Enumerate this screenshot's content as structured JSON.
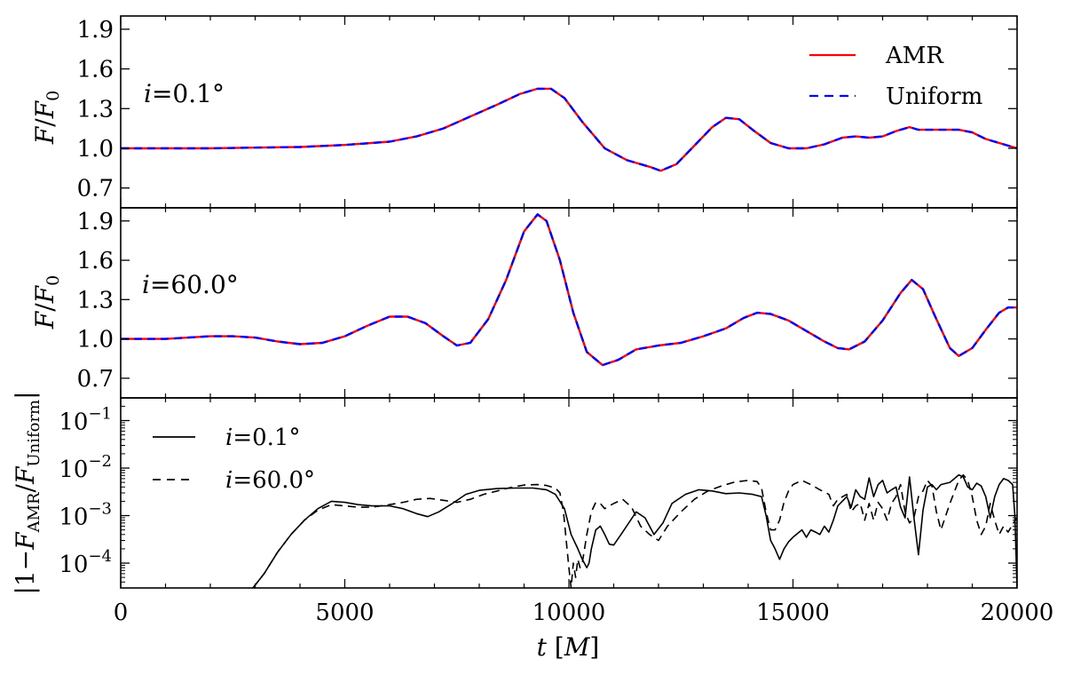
{
  "chart_data": [
    {
      "type": "line",
      "panel": "top",
      "annotation": "i = 0.1°",
      "ylabel": "F/F0",
      "xlim": [
        0,
        20000
      ],
      "ylim": [
        0.55,
        2.0
      ],
      "yticks": [
        0.7,
        1.0,
        1.3,
        1.6,
        1.9
      ],
      "legend": {
        "placement": "top-right",
        "entries": [
          "AMR",
          "Uniform"
        ]
      },
      "series": [
        {
          "name": "AMR",
          "color": "#ff0000",
          "style": "solid",
          "x": [
            0,
            1000,
            2000,
            3000,
            4000,
            5000,
            6000,
            6600,
            7200,
            7800,
            8400,
            8900,
            9300,
            9600,
            9900,
            10300,
            10800,
            11300,
            11800,
            12050,
            12400,
            12800,
            13200,
            13500,
            13800,
            14100,
            14500,
            14900,
            15300,
            15700,
            16100,
            16400,
            16700,
            17000,
            17300,
            17600,
            17800,
            18000,
            18300,
            18700,
            19000,
            19300,
            19600,
            20000
          ],
          "y": [
            1.0,
            1.0,
            1.0,
            1.005,
            1.01,
            1.025,
            1.05,
            1.09,
            1.15,
            1.24,
            1.33,
            1.41,
            1.45,
            1.45,
            1.38,
            1.2,
            1.0,
            0.91,
            0.86,
            0.83,
            0.88,
            1.02,
            1.16,
            1.23,
            1.22,
            1.14,
            1.04,
            1.0,
            1.0,
            1.03,
            1.08,
            1.09,
            1.08,
            1.09,
            1.13,
            1.16,
            1.14,
            1.14,
            1.14,
            1.14,
            1.12,
            1.07,
            1.04,
            1.0
          ]
        },
        {
          "name": "Uniform",
          "color": "#0000ff",
          "style": "dashed",
          "x": [
            0,
            1000,
            2000,
            3000,
            4000,
            5000,
            6000,
            6600,
            7200,
            7800,
            8400,
            8900,
            9300,
            9600,
            9900,
            10300,
            10800,
            11300,
            11800,
            12050,
            12400,
            12800,
            13200,
            13500,
            13800,
            14100,
            14500,
            14900,
            15300,
            15700,
            16100,
            16400,
            16700,
            17000,
            17300,
            17600,
            17800,
            18000,
            18300,
            18700,
            19000,
            19300,
            19600,
            20000
          ],
          "y": [
            1.0,
            1.0,
            1.0,
            1.005,
            1.01,
            1.025,
            1.05,
            1.09,
            1.15,
            1.24,
            1.33,
            1.41,
            1.45,
            1.45,
            1.38,
            1.2,
            1.0,
            0.91,
            0.86,
            0.83,
            0.88,
            1.02,
            1.16,
            1.23,
            1.22,
            1.14,
            1.04,
            1.0,
            1.0,
            1.03,
            1.08,
            1.09,
            1.08,
            1.09,
            1.13,
            1.16,
            1.14,
            1.14,
            1.14,
            1.14,
            1.12,
            1.07,
            1.04,
            1.0
          ]
        }
      ]
    },
    {
      "type": "line",
      "panel": "middle",
      "annotation": "i = 60.0°",
      "ylabel": "F/F0",
      "xlim": [
        0,
        20000
      ],
      "ylim": [
        0.55,
        2.0
      ],
      "yticks": [
        0.7,
        1.0,
        1.3,
        1.6,
        1.9
      ],
      "series": [
        {
          "name": "AMR",
          "color": "#ff0000",
          "style": "solid",
          "x": [
            0,
            500,
            1000,
            1500,
            2000,
            2500,
            3000,
            3500,
            4000,
            4500,
            5000,
            5500,
            6000,
            6400,
            6800,
            7200,
            7500,
            7800,
            8200,
            8600,
            9000,
            9300,
            9500,
            9800,
            10100,
            10400,
            10750,
            11100,
            11500,
            12000,
            12500,
            13000,
            13500,
            13900,
            14200,
            14500,
            14900,
            15300,
            15700,
            16000,
            16250,
            16600,
            17000,
            17400,
            17650,
            17900,
            18200,
            18500,
            18700,
            19000,
            19300,
            19600,
            19800,
            20000
          ],
          "y": [
            1.0,
            1.0,
            1.0,
            1.01,
            1.02,
            1.02,
            1.01,
            0.98,
            0.96,
            0.97,
            1.02,
            1.1,
            1.17,
            1.17,
            1.12,
            1.02,
            0.95,
            0.97,
            1.15,
            1.45,
            1.82,
            1.95,
            1.9,
            1.6,
            1.2,
            0.9,
            0.8,
            0.84,
            0.92,
            0.95,
            0.97,
            1.02,
            1.08,
            1.16,
            1.2,
            1.19,
            1.14,
            1.06,
            0.98,
            0.93,
            0.92,
            0.98,
            1.14,
            1.35,
            1.45,
            1.38,
            1.15,
            0.93,
            0.87,
            0.93,
            1.07,
            1.2,
            1.24,
            1.24
          ]
        },
        {
          "name": "Uniform",
          "color": "#0000ff",
          "style": "dashed",
          "x": [
            0,
            500,
            1000,
            1500,
            2000,
            2500,
            3000,
            3500,
            4000,
            4500,
            5000,
            5500,
            6000,
            6400,
            6800,
            7200,
            7500,
            7800,
            8200,
            8600,
            9000,
            9300,
            9500,
            9800,
            10100,
            10400,
            10750,
            11100,
            11500,
            12000,
            12500,
            13000,
            13500,
            13900,
            14200,
            14500,
            14900,
            15300,
            15700,
            16000,
            16250,
            16600,
            17000,
            17400,
            17650,
            17900,
            18200,
            18500,
            18700,
            19000,
            19300,
            19600,
            19800,
            20000
          ],
          "y": [
            1.0,
            1.0,
            1.0,
            1.01,
            1.02,
            1.02,
            1.01,
            0.98,
            0.96,
            0.97,
            1.02,
            1.1,
            1.17,
            1.17,
            1.12,
            1.02,
            0.95,
            0.97,
            1.15,
            1.45,
            1.82,
            1.95,
            1.9,
            1.6,
            1.2,
            0.9,
            0.8,
            0.84,
            0.92,
            0.95,
            0.97,
            1.02,
            1.08,
            1.16,
            1.2,
            1.19,
            1.14,
            1.06,
            0.98,
            0.93,
            0.92,
            0.98,
            1.14,
            1.35,
            1.45,
            1.38,
            1.15,
            0.93,
            0.87,
            0.93,
            1.07,
            1.2,
            1.24,
            1.24
          ]
        }
      ]
    },
    {
      "type": "line",
      "panel": "bottom",
      "ylabel": "|1 − F_AMR / F_Uniform|",
      "xlabel": "t [M]",
      "xlim": [
        0,
        20000
      ],
      "ylim": [
        3e-05,
        0.3
      ],
      "yscale": "log",
      "xticks": [
        0,
        5000,
        10000,
        15000,
        20000
      ],
      "yticks": [
        {
          "value": 0.0001,
          "base": "10",
          "exp": "−4"
        },
        {
          "value": 0.001,
          "base": "10",
          "exp": "−3"
        },
        {
          "value": 0.01,
          "base": "10",
          "exp": "−2"
        },
        {
          "value": 0.1,
          "base": "10",
          "exp": "−1"
        }
      ],
      "legend": {
        "placement": "top-left",
        "entries": [
          "i = 0.1°",
          "i = 60.0°"
        ]
      },
      "series": [
        {
          "name": "i = 0.1°",
          "color": "#000000",
          "style": "solid",
          "x": [
            2950,
            3200,
            3500,
            3800,
            4100,
            4400,
            4700,
            5000,
            5300,
            5600,
            6000,
            6300,
            6600,
            6850,
            7100,
            7400,
            7700,
            8000,
            8400,
            8800,
            9200,
            9500,
            9700,
            9900,
            10050,
            10200,
            10300,
            10400,
            10450,
            10500,
            10600,
            10700,
            10800,
            10900,
            11000,
            11200,
            11500,
            11700,
            11900,
            12100,
            12300,
            12600,
            12900,
            13200,
            13500,
            13800,
            14100,
            14300,
            14400,
            14500,
            14600,
            14700,
            14800,
            14900,
            15000,
            15100,
            15200,
            15300,
            15400,
            15500,
            15600,
            15700,
            15800,
            15900,
            16000,
            16200,
            16300,
            16400,
            16500,
            16600,
            16700,
            16800,
            16900,
            17000,
            17100,
            17200,
            17300,
            17400,
            17500,
            17600,
            17700,
            17800,
            17900,
            18000,
            18100,
            18200,
            18300,
            18500,
            18700,
            18800,
            18900,
            19000,
            19100,
            19200,
            19300,
            19400,
            19500,
            19600,
            19700,
            19800,
            19900,
            19950,
            20000
          ],
          "y": [
            3e-05,
            6e-05,
            0.00017,
            0.0004,
            0.0008,
            0.0014,
            0.002,
            0.0019,
            0.0017,
            0.0016,
            0.0016,
            0.0014,
            0.0011,
            0.00095,
            0.0012,
            0.0018,
            0.0028,
            0.0034,
            0.0037,
            0.0038,
            0.0038,
            0.0035,
            0.0028,
            0.0014,
            0.0004,
            0.0002,
            0.00012,
            8e-05,
            0.0001,
            0.0002,
            0.0005,
            0.0006,
            0.0004,
            0.00025,
            0.00024,
            0.00045,
            0.0012,
            0.0009,
            0.0004,
            0.0007,
            0.0018,
            0.0028,
            0.0035,
            0.0033,
            0.0029,
            0.003,
            0.0028,
            0.0025,
            0.001,
            0.0003,
            0.0002,
            0.00012,
            0.0002,
            0.00028,
            0.00035,
            0.00042,
            0.0005,
            0.00035,
            0.0005,
            0.00045,
            0.0004,
            0.0006,
            0.00045,
            0.0008,
            0.0016,
            0.0025,
            0.0015,
            0.0035,
            0.0025,
            0.0022,
            0.0062,
            0.0025,
            0.0045,
            0.0055,
            0.003,
            0.0035,
            0.004,
            0.0015,
            0.0009,
            0.0065,
            0.0009,
            0.00015,
            0.0013,
            0.004,
            0.0045,
            0.0035,
            0.0045,
            0.005,
            0.0072,
            0.0065,
            0.004,
            0.0035,
            0.0048,
            0.0042,
            0.0025,
            0.0009,
            0.0025,
            0.0045,
            0.006,
            0.0055,
            0.0045,
            0.001,
            3e-05
          ]
        },
        {
          "name": "i = 60.0°",
          "color": "#000000",
          "style": "dashed",
          "x": [
            2950,
            3200,
            3500,
            3800,
            4100,
            4400,
            4700,
            5000,
            5300,
            5600,
            6000,
            6300,
            6600,
            6900,
            7200,
            7500,
            7800,
            8100,
            8400,
            8700,
            9000,
            9300,
            9500,
            9700,
            9800,
            9880,
            9940,
            10000,
            10050,
            10100,
            10150,
            10200,
            10250,
            10300,
            10400,
            10500,
            10600,
            10700,
            10800,
            10900,
            11000,
            11200,
            11400,
            11600,
            11800,
            12000,
            12200,
            12500,
            12800,
            13100,
            13400,
            13700,
            14000,
            14200,
            14300,
            14400,
            14500,
            14600,
            14700,
            14800,
            14900,
            15000,
            15200,
            15400,
            15600,
            15800,
            15900,
            16000,
            16200,
            16300,
            16400,
            16500,
            16600,
            16700,
            16800,
            16900,
            17000,
            17100,
            17200,
            17300,
            17400,
            17500,
            17600,
            17700,
            17800,
            17900,
            18000,
            18100,
            18200,
            18300,
            18500,
            18700,
            18800,
            18900,
            19000,
            19100,
            19200,
            19300,
            19400,
            19500,
            19600,
            19700,
            19800,
            19900,
            20000
          ],
          "y": [
            3e-05,
            6e-05,
            0.00017,
            0.0004,
            0.0008,
            0.0013,
            0.0017,
            0.0016,
            0.0015,
            0.0015,
            0.0017,
            0.0019,
            0.0022,
            0.0023,
            0.0021,
            0.0019,
            0.0022,
            0.0028,
            0.0033,
            0.0039,
            0.0044,
            0.0045,
            0.0043,
            0.0038,
            0.003,
            0.0012,
            0.0003,
            8e-05,
            3e-05,
            0.0001,
            5e-05,
            0.00012,
            8e-05,
            0.0001,
            0.0004,
            0.0012,
            0.0019,
            0.0018,
            0.0014,
            0.0016,
            0.0018,
            0.0022,
            0.0015,
            0.0006,
            0.0004,
            0.0003,
            0.0006,
            0.0012,
            0.0022,
            0.0033,
            0.0042,
            0.0051,
            0.0055,
            0.0052,
            0.0038,
            0.0012,
            0.0005,
            0.0005,
            0.0008,
            0.0019,
            0.0033,
            0.0045,
            0.0055,
            0.0045,
            0.0035,
            0.0028,
            0.0016,
            0.0022,
            0.0028,
            0.0012,
            0.0016,
            0.0018,
            0.0008,
            0.0018,
            0.0008,
            0.0019,
            0.0014,
            0.0008,
            0.0018,
            0.0025,
            0.0045,
            0.0012,
            0.0007,
            0.0009,
            0.0025,
            0.0033,
            0.0055,
            0.0042,
            0.0012,
            0.0005,
            0.0018,
            0.0055,
            0.0072,
            0.0055,
            0.0025,
            0.0008,
            0.0004,
            0.0006,
            0.0018,
            0.0008,
            0.0004,
            0.0006,
            0.00045,
            0.00065,
            0.0009
          ]
        }
      ]
    }
  ]
}
